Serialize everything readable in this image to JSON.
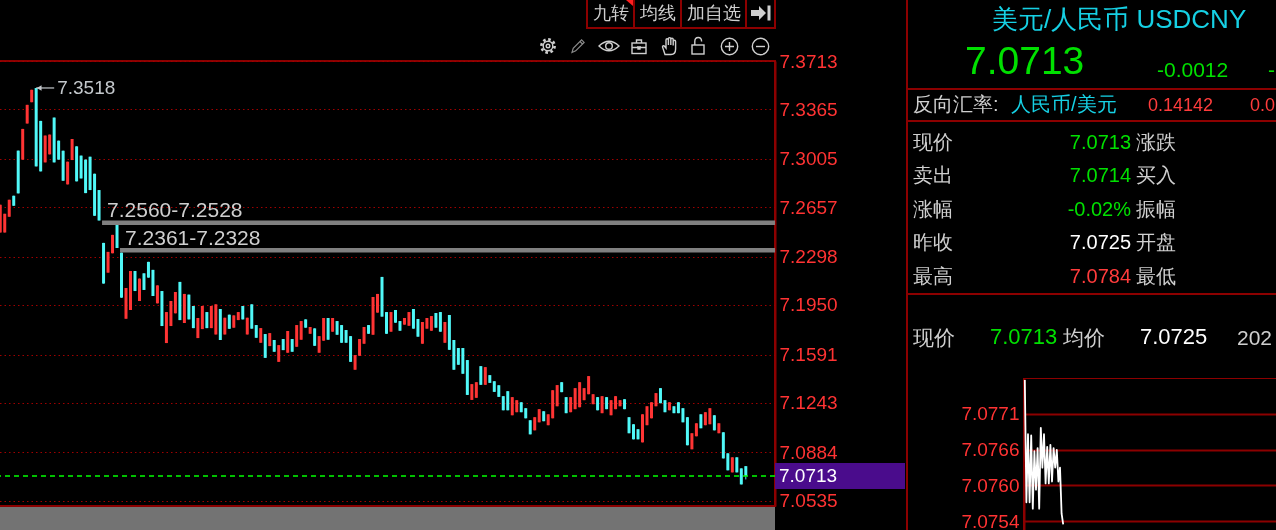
{
  "chart_data": [
    {
      "type": "candlestick",
      "annotations": [
        "7.3518"
      ],
      "categories": [
        null,
        null,
        null,
        null,
        null,
        null,
        null,
        null,
        null,
        null,
        null,
        null,
        null,
        null,
        null,
        null,
        null,
        null,
        null,
        null,
        null,
        null,
        null,
        null,
        null,
        null,
        null,
        null,
        null,
        null,
        null,
        null,
        null,
        null,
        null,
        null,
        null,
        null,
        null,
        null,
        null,
        null,
        null,
        null,
        null,
        null,
        null,
        null,
        null,
        null,
        null,
        null,
        null,
        null,
        null,
        null,
        null,
        null,
        null,
        null,
        null,
        null,
        null,
        null,
        null,
        null,
        null,
        null,
        null,
        null,
        null,
        null,
        null,
        null,
        null,
        null,
        null,
        null,
        null,
        null,
        null,
        null,
        null,
        null,
        null,
        null,
        null,
        null,
        null,
        null,
        null,
        null,
        null,
        null,
        null,
        null,
        null,
        null,
        null,
        null,
        null,
        null,
        null,
        null,
        null,
        null,
        null,
        null,
        null,
        null,
        null,
        null,
        null,
        null,
        null,
        null,
        null,
        null,
        null,
        null,
        null,
        null,
        null,
        null,
        null,
        null,
        null,
        null,
        null,
        null,
        null,
        null,
        null,
        null,
        null,
        null,
        null,
        null,
        null,
        null,
        null,
        null,
        null,
        null,
        null,
        null,
        null,
        null,
        null,
        null,
        null,
        null,
        null,
        null,
        null,
        null,
        null,
        null,
        null,
        null,
        null,
        null,
        null,
        null,
        null,
        null,
        null,
        null,
        null,
        null,
        null,
        null,
        null
      ],
      "ohlc": [
        [
          7.2473,
          7.2674,
          7.2473,
          7.2674
        ],
        [
          7.2473,
          7.2608,
          7.2473,
          7.2608
        ],
        [
          7.2587,
          7.271,
          7.2587,
          7.271
        ],
        [
          7.2739,
          7.2739,
          7.2666,
          7.2666
        ],
        [
          7.3065,
          7.3065,
          7.2756,
          7.2756
        ],
        [
          7.3,
          7.3222,
          7.3,
          7.3222
        ],
        [
          7.3261,
          7.3396,
          7.3261,
          7.3396
        ],
        [
          7.3415,
          7.3505,
          7.3415,
          7.3505
        ],
        [
          7.3518,
          7.3518,
          7.2951,
          7.2951
        ],
        [
          7.328,
          7.328,
          7.2915,
          7.2915
        ],
        [
          7.298,
          7.3174,
          7.298,
          7.3174
        ],
        [
          7.3038,
          7.3181,
          7.3038,
          7.3181
        ],
        [
          7.3304,
          7.3304,
          7.298,
          7.298
        ],
        [
          7.3137,
          7.3137,
          7.3,
          7.3
        ],
        [
          7.3065,
          7.3065,
          7.2848,
          7.2848
        ],
        [
          7.2821,
          7.2985,
          7.2821,
          7.2985
        ],
        [
          7.2997,
          7.3149,
          7.2997,
          7.3149
        ],
        [
          7.3096,
          7.3096,
          7.2843,
          7.2843
        ],
        [
          7.3029,
          7.3029,
          7.2864,
          7.2864
        ],
        [
          7.3,
          7.3,
          7.2758,
          7.2758
        ],
        [
          7.3021,
          7.3021,
          7.278,
          7.278
        ],
        [
          7.2898,
          7.2898,
          7.2594,
          7.2594
        ],
        [
          7.278,
          7.278,
          7.256,
          7.256
        ],
        [
          7.2398,
          7.2398,
          7.2104,
          7.2104
        ],
        [
          7.2183,
          7.2333,
          7.2183,
          7.2333
        ],
        [
          7.2323,
          7.2456,
          7.2323,
          7.2456
        ],
        [
          7.2528,
          7.2528,
          7.2361,
          7.2361
        ],
        [
          7.2328,
          7.2328,
          7.2002,
          7.2002
        ],
        [
          7.185,
          7.2072,
          7.185,
          7.2072
        ],
        [
          7.1913,
          7.2195,
          7.1913,
          7.2195
        ],
        [
          7.2195,
          7.2195,
          7.205,
          7.205
        ],
        [
          7.1978,
          7.214,
          7.1978,
          7.214
        ],
        [
          7.2178,
          7.2178,
          7.2058,
          7.2058
        ],
        [
          7.2261,
          7.2261,
          7.2147,
          7.2147
        ],
        [
          7.2203,
          7.2203,
          7.2014,
          7.2014
        ],
        [
          7.1961,
          7.2091,
          7.1961,
          7.2091
        ],
        [
          7.205,
          7.205,
          7.1797,
          7.1797
        ],
        [
          7.1674,
          7.1898,
          7.1674,
          7.1898
        ],
        [
          7.1797,
          7.1978,
          7.1797,
          7.1978
        ],
        [
          7.1889,
          7.2043,
          7.1889,
          7.2043
        ],
        [
          7.2116,
          7.2116,
          7.184,
          7.184
        ],
        [
          7.1819,
          7.2029,
          7.1819,
          7.2029
        ],
        [
          7.2024,
          7.2024,
          7.1845,
          7.1845
        ],
        [
          7.1942,
          7.1942,
          7.1782,
          7.1782
        ],
        [
          7.171,
          7.1855,
          7.171,
          7.1855
        ],
        [
          7.1775,
          7.1942,
          7.1775,
          7.1942
        ],
        [
          7.1898,
          7.1898,
          7.1782,
          7.1782
        ],
        [
          7.1782,
          7.1942,
          7.1782,
          7.1942
        ],
        [
          7.1736,
          7.1954,
          7.1736,
          7.1954
        ],
        [
          7.192,
          7.192,
          7.1696,
          7.1696
        ],
        [
          7.1736,
          7.1857,
          7.1736,
          7.1857
        ],
        [
          7.1879,
          7.1879,
          7.1777,
          7.1777
        ],
        [
          7.1785,
          7.1874,
          7.1785,
          7.1874
        ],
        [
          7.184,
          7.1898,
          7.184,
          7.1898
        ],
        [
          7.1942,
          7.1942,
          7.1845,
          7.1845
        ],
        [
          7.1736,
          7.1857,
          7.1736,
          7.1857
        ],
        [
          7.1954,
          7.1954,
          7.1778,
          7.1778
        ],
        [
          7.1804,
          7.1804,
          7.1712,
          7.1712
        ],
        [
          7.1676,
          7.1782,
          7.1676,
          7.1782
        ],
        [
          7.1739,
          7.1739,
          7.1567,
          7.1567
        ],
        [
          7.1652,
          7.1746,
          7.1652,
          7.1746
        ],
        [
          7.1696,
          7.1696,
          7.1611,
          7.1611
        ],
        [
          7.1538,
          7.1659,
          7.1538,
          7.1659
        ],
        [
          7.1703,
          7.1703,
          7.1623,
          7.1623
        ],
        [
          7.1604,
          7.1761,
          7.1604,
          7.1761
        ],
        [
          7.1703,
          7.1703,
          7.1611,
          7.1611
        ],
        [
          7.1647,
          7.1804,
          7.1647,
          7.1804
        ],
        [
          7.1698,
          7.1833,
          7.1698,
          7.1833
        ],
        [
          7.1845,
          7.1845,
          7.1785,
          7.1785
        ],
        [
          7.1741,
          7.179,
          7.1741,
          7.179
        ],
        [
          7.178,
          7.178,
          7.1654,
          7.1654
        ],
        [
          7.1604,
          7.1724,
          7.1604,
          7.1724
        ],
        [
          7.1691,
          7.1855,
          7.1691,
          7.1855
        ],
        [
          7.1855,
          7.1855,
          7.1698,
          7.1698
        ],
        [
          7.1756,
          7.1855,
          7.1756,
          7.1855
        ],
        [
          7.1833,
          7.1833,
          7.1734,
          7.1734
        ],
        [
          7.1804,
          7.1804,
          7.1676,
          7.1676
        ],
        [
          7.1768,
          7.1768,
          7.1676,
          7.1676
        ],
        [
          7.1724,
          7.1724,
          7.1538,
          7.1538
        ],
        [
          7.1481,
          7.1587,
          7.1481,
          7.1587
        ],
        [
          7.1582,
          7.1703,
          7.1582,
          7.1703
        ],
        [
          7.1669,
          7.179,
          7.1669,
          7.179
        ],
        [
          7.1804,
          7.1804,
          7.1741,
          7.1741
        ],
        [
          7.1734,
          7.2007,
          7.1734,
          7.2007
        ],
        [
          7.1894,
          7.2029,
          7.1894,
          7.2029
        ],
        [
          7.2152,
          7.2152,
          7.1865,
          7.1865
        ],
        [
          7.1898,
          7.1898,
          7.1741,
          7.1741
        ],
        [
          7.1756,
          7.1898,
          7.1756,
          7.1898
        ],
        [
          7.1913,
          7.1913,
          7.1821,
          7.1821
        ],
        [
          7.1833,
          7.1833,
          7.1763,
          7.1763
        ],
        [
          7.1807,
          7.1855,
          7.1807,
          7.1855
        ],
        [
          7.1799,
          7.1898,
          7.1799,
          7.1898
        ],
        [
          7.192,
          7.192,
          7.1778,
          7.1778
        ],
        [
          7.1848,
          7.1848,
          7.172,
          7.172
        ],
        [
          7.1669,
          7.1826,
          7.1669,
          7.1826
        ],
        [
          7.1778,
          7.1855,
          7.1778,
          7.1855
        ],
        [
          7.1763,
          7.1869,
          7.1763,
          7.1869
        ],
        [
          7.1891,
          7.1891,
          7.1785,
          7.1785
        ],
        [
          7.1898,
          7.1898,
          7.1756,
          7.1756
        ],
        [
          7.1676,
          7.1826,
          7.1676,
          7.1826
        ],
        [
          7.1877,
          7.1877,
          7.1625,
          7.1625
        ],
        [
          7.1696,
          7.1696,
          7.1481,
          7.1481
        ],
        [
          7.1638,
          7.1638,
          7.1517,
          7.1517
        ],
        [
          7.1638,
          7.1638,
          7.1452,
          7.1452
        ],
        [
          7.1551,
          7.1551,
          7.1299,
          7.1299
        ],
        [
          7.1263,
          7.1377,
          7.1263,
          7.1377
        ],
        [
          7.1278,
          7.1391,
          7.1278,
          7.1391
        ],
        [
          7.1507,
          7.1507,
          7.1372,
          7.1372
        ],
        [
          7.1372,
          7.15,
          7.1372,
          7.15
        ],
        [
          7.1442,
          7.1442,
          7.1386,
          7.1386
        ],
        [
          7.1398,
          7.1398,
          7.1321,
          7.1321
        ],
        [
          7.1369,
          7.1369,
          7.1285,
          7.1285
        ],
        [
          7.129,
          7.129,
          7.1188,
          7.1188
        ],
        [
          7.1326,
          7.1326,
          7.1188,
          7.1188
        ],
        [
          7.1152,
          7.1283,
          7.1152,
          7.1283
        ],
        [
          7.1174,
          7.1261,
          7.1174,
          7.1261
        ],
        [
          7.1246,
          7.1246,
          7.1174,
          7.1174
        ],
        [
          7.1203,
          7.1203,
          7.113,
          7.113
        ],
        [
          7.1116,
          7.1116,
          7.1014,
          7.1014
        ],
        [
          7.1043,
          7.1138,
          7.1043,
          7.1138
        ],
        [
          7.1101,
          7.1196,
          7.1101,
          7.1196
        ],
        [
          7.1181,
          7.1181,
          7.1109,
          7.1109
        ],
        [
          7.108,
          7.1159,
          7.108,
          7.1159
        ],
        [
          7.113,
          7.1333,
          7.113,
          7.1333
        ],
        [
          7.1217,
          7.137,
          7.1217,
          7.137
        ],
        [
          7.1391,
          7.1391,
          7.1319,
          7.1319
        ],
        [
          7.1283,
          7.1283,
          7.1167,
          7.1167
        ],
        [
          7.1174,
          7.1283,
          7.1174,
          7.1283
        ],
        [
          7.1196,
          7.1348,
          7.1196,
          7.1348
        ],
        [
          7.121,
          7.1391,
          7.121,
          7.1391
        ],
        [
          7.1261,
          7.1348,
          7.1261,
          7.1348
        ],
        [
          7.1304,
          7.1435,
          7.1304,
          7.1435
        ],
        [
          7.1232,
          7.1304,
          7.1232,
          7.1304
        ],
        [
          7.1283,
          7.1283,
          7.1188,
          7.1188
        ],
        [
          7.1167,
          7.129,
          7.1167,
          7.129
        ],
        [
          7.1283,
          7.1283,
          7.1196,
          7.1196
        ],
        [
          7.1152,
          7.1261,
          7.1152,
          7.1261
        ],
        [
          7.1196,
          7.129,
          7.1196,
          7.129
        ],
        [
          7.1217,
          7.1261,
          7.1217,
          7.1261
        ],
        [
          7.1268,
          7.1268,
          7.1196,
          7.1196
        ],
        [
          7.1138,
          7.1138,
          7.1022,
          7.1022
        ],
        [
          7.1087,
          7.1087,
          7.0978,
          7.0978
        ],
        [
          7.1051,
          7.1051,
          7.0978,
          7.0978
        ],
        [
          7.0956,
          7.1159,
          7.0956,
          7.1159
        ],
        [
          7.108,
          7.1217,
          7.108,
          7.1217
        ],
        [
          7.113,
          7.1246,
          7.113,
          7.1246
        ],
        [
          7.1217,
          7.1312,
          7.1217,
          7.1312
        ],
        [
          7.1348,
          7.1348,
          7.1239,
          7.1239
        ],
        [
          7.1261,
          7.1261,
          7.1174,
          7.1174
        ],
        [
          7.1188,
          7.1246,
          7.1188,
          7.1246
        ],
        [
          7.1217,
          7.1217,
          7.1167,
          7.1167
        ],
        [
          7.1246,
          7.1246,
          7.1167,
          7.1167
        ],
        [
          7.1203,
          7.1203,
          7.1101,
          7.1101
        ],
        [
          7.1138,
          7.1138,
          7.0935,
          7.0935
        ],
        [
          7.0906,
          7.1022,
          7.0906,
          7.1022
        ],
        [
          7.1,
          7.1094,
          7.1,
          7.1094
        ],
        [
          7.1159,
          7.1159,
          7.1058,
          7.1058
        ],
        [
          7.108,
          7.1174,
          7.108,
          7.1174
        ],
        [
          7.1087,
          7.1203,
          7.1087,
          7.1203
        ],
        [
          7.1152,
          7.1152,
          7.1043,
          7.1043
        ],
        [
          7.1022,
          7.1094,
          7.1022,
          7.1094
        ],
        [
          7.1029,
          7.1029,
          7.084,
          7.084
        ],
        [
          7.0877,
          7.0877,
          7.0754,
          7.0754
        ],
        [
          7.0739,
          7.0848,
          7.0739,
          7.0848
        ],
        [
          7.0848,
          7.0848,
          7.0739,
          7.0739
        ],
        [
          7.0768,
          7.0768,
          7.0652,
          7.0652
        ],
        [
          7.0784,
          7.0784,
          7.0688,
          7.0713
        ],
        null,
        null,
        null,
        null,
        null,
        null
      ],
      "ylim": [
        7.0496,
        7.3713
      ],
      "yticks": [
        7.3713,
        7.3365,
        7.3005,
        7.2657,
        7.2298,
        {
          "value": 7.195,
          "label": "7.1950"
        },
        7.1591,
        7.1243,
        7.0884,
        7.0535
      ],
      "grid": "y",
      "tick_labels": "y",
      "ref_lines": [
        {
          "axis": "y",
          "value": 7.0713,
          "label": "7.0713",
          "color": "#00ff00",
          "line_style": "dashed"
        }
      ],
      "bands": [
        {
          "axis": "y",
          "from": 7.2528,
          "to": 7.256,
          "label": "7.2560-7.2528",
          "color": "#808080"
        },
        {
          "axis": "y",
          "from": 7.2328,
          "to": 7.2361,
          "label": "7.2361-7.2328",
          "color": "#808080"
        }
      ]
    },
    {
      "type": "other",
      "annotations": [
        "九转",
        "均线",
        "加自选"
      ]
    },
    {
      "type": "other",
      "title": "美元/人民币 USDCNY",
      "annotations": [
        "7.0713",
        "-0.0012",
        "-",
        "反向汇率:",
        "人民币/美元",
        "0.14142",
        "0.0",
        "现价",
        "7.0713",
        "涨跌",
        "卖出",
        "7.0714",
        "买入",
        "涨幅",
        "-0.02%",
        "振幅",
        "昨收",
        "7.0725",
        "开盘",
        "最高",
        "7.0784",
        "最低"
      ]
    },
    {
      "type": "line",
      "annotations": [
        "现价",
        "7.0713",
        "均价",
        "7.0725",
        "202"
      ],
      "categories": [
        null,
        null,
        null,
        null,
        null,
        null,
        null,
        null,
        null,
        null,
        null,
        null,
        null,
        null,
        null,
        null,
        null,
        null,
        null,
        null,
        null,
        null,
        null,
        null,
        null,
        null,
        null,
        null,
        null,
        null,
        null,
        null,
        null,
        null,
        null,
        null,
        null,
        null,
        null,
        null,
        null,
        null,
        null,
        null,
        null,
        null,
        null,
        null,
        null,
        null,
        null,
        null,
        null,
        null,
        null,
        null,
        null,
        null,
        null,
        null,
        null,
        null,
        null,
        null,
        null,
        null,
        null,
        null,
        null,
        null,
        null,
        null,
        null,
        null,
        null,
        null,
        null,
        null,
        null,
        null,
        null,
        null,
        null,
        null,
        null,
        null,
        null,
        null,
        null,
        null,
        null,
        null,
        null,
        null,
        null,
        null,
        null,
        null,
        null,
        null,
        null,
        null,
        null,
        null,
        null,
        null,
        null,
        null,
        null,
        null,
        null,
        null,
        null,
        null,
        null,
        null,
        null,
        null,
        null,
        null,
        null,
        null,
        null,
        null,
        null,
        null,
        null,
        null,
        null,
        null,
        null,
        null,
        null,
        null,
        null,
        null,
        null,
        null,
        null,
        null,
        null,
        null,
        null,
        null,
        null,
        null,
        null,
        null,
        null,
        null,
        null,
        null,
        null,
        null,
        null,
        null,
        null,
        null,
        null,
        null
      ],
      "values": [
        7.07767,
        7.07573,
        7.07681,
        7.07573,
        7.07679,
        7.07563,
        7.07654,
        7.07593,
        7.07659,
        7.07563,
        7.07691,
        7.07628,
        7.07681,
        7.07603,
        7.07661,
        7.07603,
        7.07664,
        7.07606,
        7.07659,
        7.07628,
        7.07656,
        7.07606,
        7.07628,
        7.07555,
        7.07538,
        null,
        null,
        null,
        null,
        null,
        null,
        null,
        null,
        null,
        null,
        null,
        null,
        null,
        null,
        null,
        null,
        null,
        null,
        null,
        null,
        null,
        null,
        null,
        null,
        null,
        null,
        null,
        null,
        null,
        null,
        null,
        null,
        null,
        null,
        null,
        null,
        null,
        null,
        null,
        null,
        null,
        null,
        null,
        null,
        null,
        null,
        null,
        null,
        null,
        null,
        null,
        null,
        null,
        null,
        null,
        null,
        null,
        null,
        null,
        null,
        null,
        null,
        null,
        null,
        null,
        null,
        null,
        null,
        null,
        null,
        null,
        null,
        null,
        null,
        null,
        null,
        null,
        null,
        null,
        null,
        null,
        null,
        null,
        null,
        null,
        null,
        null,
        null,
        null,
        null,
        null,
        null,
        null,
        null,
        null,
        null,
        null,
        null,
        null,
        null,
        null,
        null,
        null,
        null,
        null,
        null,
        null,
        null,
        null,
        null,
        null,
        null,
        null,
        null,
        null,
        null,
        null,
        null,
        null,
        null,
        null,
        null,
        null,
        null,
        null,
        null,
        null,
        null,
        null,
        null,
        null,
        null,
        null,
        null,
        null
      ],
      "color": "#ffffff",
      "ylim": [
        7.07526,
        7.0777
      ],
      "yticks": [
        {
          "value": 7.07713,
          "label": "7.0771"
        },
        {
          "value": 7.07656,
          "label": "7.0766"
        },
        {
          "value": 7.076,
          "label": "7.0760"
        },
        {
          "value": 7.07543,
          "label": "7.0754"
        }
      ],
      "grid": "y",
      "tick_labels": "y"
    }
  ]
}
